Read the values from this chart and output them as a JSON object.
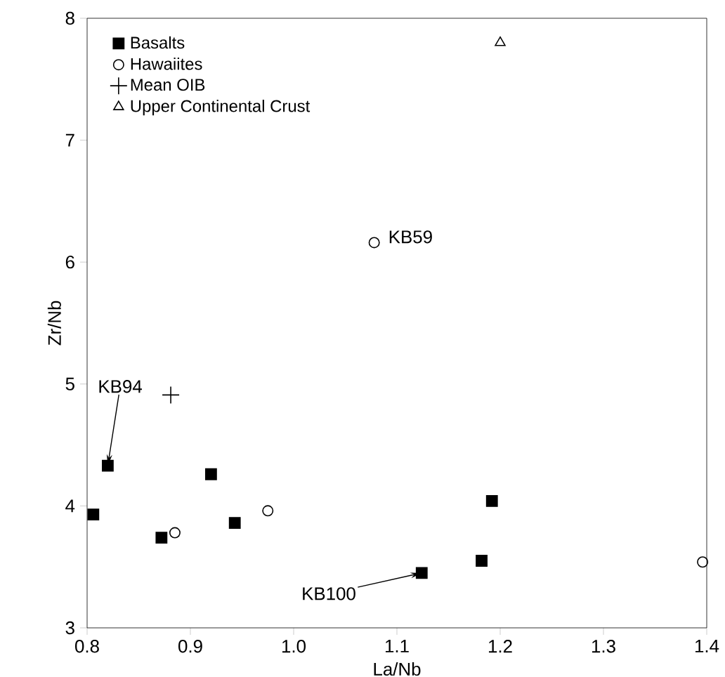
{
  "chart_data": {
    "type": "scatter",
    "xlabel": "La/Nb",
    "ylabel": "Zr/Nb",
    "xlim": [
      0.8,
      1.4
    ],
    "ylim": [
      3,
      8
    ],
    "xticks": [
      0.8,
      0.9,
      {
        "value": 1.0,
        "label": "1.0"
      },
      1.1,
      1.2,
      1.3,
      1.4
    ],
    "yticks": [
      3,
      4,
      5,
      6,
      7,
      8
    ],
    "legend": "top left",
    "grid": false,
    "series": [
      {
        "name": "Basalts",
        "color": "#000000",
        "marker": "square",
        "x": [
          0.806,
          0.82,
          0.872,
          0.92,
          0.943,
          1.124,
          1.182,
          1.192
        ],
        "values": [
          3.93,
          4.33,
          3.74,
          4.26,
          3.86,
          3.45,
          3.55,
          4.04
        ]
      },
      {
        "name": "Hawaiites",
        "color": "#000000",
        "marker": "circle",
        "x": [
          0.885,
          0.975,
          1.078,
          1.396
        ],
        "values": [
          3.78,
          3.96,
          6.16,
          3.54
        ]
      },
      {
        "name": "Mean OIB",
        "color": "#000000",
        "marker": "cross",
        "x": [
          0.881
        ],
        "values": [
          4.91
        ]
      },
      {
        "name": "Upper Continental Crust",
        "color": "#000000",
        "marker": "triangle",
        "x": [
          1.2
        ],
        "values": [
          7.8
        ]
      }
    ],
    "annotations": [
      {
        "text": "KB94",
        "x": 0.82,
        "y": 4.33
      },
      {
        "text": "KB100",
        "x": 1.124,
        "y": 3.45
      },
      {
        "text": "KB59",
        "x": 1.078,
        "y": 6.16
      }
    ]
  }
}
